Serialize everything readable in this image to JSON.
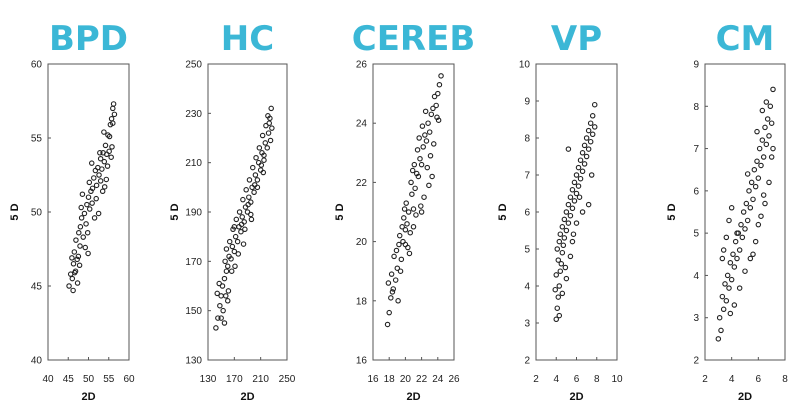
{
  "colors": {
    "title": "#3bb7d6",
    "point": "#222222",
    "frame": "#555555"
  },
  "chart_data": [
    {
      "type": "scatter",
      "title": "BPD",
      "xlabel": "2D",
      "ylabel": "5 D",
      "xlim": [
        40,
        60
      ],
      "ylim": [
        40,
        60
      ],
      "xticks": [
        "40",
        "45",
        "50",
        "55",
        "60"
      ],
      "yticks": [
        "40",
        "45",
        "50",
        "55",
        "60"
      ],
      "points": [
        [
          45.2,
          45.0
        ],
        [
          45.6,
          45.8
        ],
        [
          46.0,
          45.5
        ],
        [
          46.3,
          46.5
        ],
        [
          46.8,
          46.0
        ],
        [
          47.2,
          46.8
        ],
        [
          45.9,
          46.9
        ],
        [
          46.5,
          47.3
        ],
        [
          47.5,
          47.0
        ],
        [
          47.8,
          46.4
        ],
        [
          46.9,
          48.1
        ],
        [
          47.6,
          48.6
        ],
        [
          48.0,
          49.0
        ],
        [
          48.3,
          49.6
        ],
        [
          48.7,
          48.3
        ],
        [
          49.0,
          49.9
        ],
        [
          48.2,
          50.3
        ],
        [
          49.4,
          49.2
        ],
        [
          49.6,
          50.5
        ],
        [
          50.0,
          51.0
        ],
        [
          49.8,
          48.6
        ],
        [
          50.3,
          50.2
        ],
        [
          50.6,
          51.4
        ],
        [
          50.2,
          52.0
        ],
        [
          51.0,
          51.6
        ],
        [
          51.3,
          52.3
        ],
        [
          50.9,
          50.6
        ],
        [
          51.7,
          52.8
        ],
        [
          52.0,
          51.8
        ],
        [
          52.3,
          53.0
        ],
        [
          51.5,
          49.6
        ],
        [
          52.6,
          52.5
        ],
        [
          53.0,
          53.6
        ],
        [
          53.3,
          52.9
        ],
        [
          53.6,
          54.0
        ],
        [
          53.9,
          53.4
        ],
        [
          54.2,
          54.5
        ],
        [
          54.5,
          53.9
        ],
        [
          54.8,
          55.2
        ],
        [
          55.1,
          54.1
        ],
        [
          55.4,
          55.9
        ],
        [
          55.7,
          56.3
        ],
        [
          56.0,
          57.0
        ],
        [
          56.2,
          57.3
        ],
        [
          55.6,
          53.7
        ],
        [
          54.0,
          51.7
        ],
        [
          53.0,
          52.1
        ],
        [
          52.5,
          49.9
        ],
        [
          56.4,
          56.6
        ],
        [
          55.8,
          54.4
        ],
        [
          54.7,
          53.1
        ],
        [
          53.8,
          55.4
        ],
        [
          52.8,
          54.0
        ],
        [
          50.8,
          53.3
        ],
        [
          49.2,
          47.6
        ],
        [
          47.3,
          45.2
        ],
        [
          46.2,
          44.7
        ],
        [
          48.5,
          51.2
        ],
        [
          51.9,
          50.9
        ],
        [
          56.0,
          56.0
        ],
        [
          55.2,
          55.1
        ],
        [
          54.4,
          52.2
        ],
        [
          53.5,
          51.4
        ],
        [
          49.9,
          47.2
        ],
        [
          47.9,
          47.7
        ],
        [
          46.6,
          45.9
        ]
      ]
    },
    {
      "type": "scatter",
      "title": "HC",
      "xlabel": "2D",
      "ylabel": "5 D",
      "xlim": [
        130,
        250
      ],
      "ylim": [
        130,
        250
      ],
      "xticks": [
        "130",
        "170",
        "210",
        "250"
      ],
      "yticks": [
        "130",
        "150",
        "170",
        "190",
        "210",
        "230",
        "250"
      ],
      "points": [
        [
          142,
          143
        ],
        [
          145,
          147
        ],
        [
          148,
          152
        ],
        [
          144,
          157
        ],
        [
          150,
          156
        ],
        [
          152,
          160
        ],
        [
          147,
          161
        ],
        [
          155,
          163
        ],
        [
          153,
          150
        ],
        [
          158,
          166
        ],
        [
          156,
          170
        ],
        [
          160,
          168
        ],
        [
          162,
          172
        ],
        [
          158,
          175
        ],
        [
          165,
          171
        ],
        [
          167,
          176
        ],
        [
          163,
          178
        ],
        [
          170,
          174
        ],
        [
          172,
          180
        ],
        [
          168,
          183
        ],
        [
          175,
          178
        ],
        [
          177,
          184
        ],
        [
          173,
          187
        ],
        [
          180,
          182
        ],
        [
          182,
          188
        ],
        [
          178,
          190
        ],
        [
          185,
          186
        ],
        [
          187,
          192
        ],
        [
          183,
          195
        ],
        [
          190,
          190
        ],
        [
          192,
          196
        ],
        [
          188,
          199
        ],
        [
          195,
          194
        ],
        [
          197,
          200
        ],
        [
          193,
          203
        ],
        [
          200,
          198
        ],
        [
          202,
          205
        ],
        [
          198,
          208
        ],
        [
          205,
          203
        ],
        [
          207,
          210
        ],
        [
          203,
          212
        ],
        [
          210,
          207
        ],
        [
          212,
          214
        ],
        [
          208,
          216
        ],
        [
          215,
          211
        ],
        [
          217,
          218
        ],
        [
          213,
          221
        ],
        [
          220,
          216
        ],
        [
          222,
          222
        ],
        [
          218,
          225
        ],
        [
          224,
          228
        ],
        [
          226,
          232
        ],
        [
          221,
          229
        ],
        [
          225,
          219
        ],
        [
          215,
          213
        ],
        [
          205,
          200
        ],
        [
          195,
          189
        ],
        [
          186,
          183
        ],
        [
          176,
          173
        ],
        [
          166,
          166
        ],
        [
          157,
          156
        ],
        [
          150,
          147
        ],
        [
          161,
          158
        ],
        [
          171,
          168
        ],
        [
          181,
          185
        ],
        [
          191,
          193
        ],
        [
          201,
          201
        ],
        [
          211,
          209
        ],
        [
          223,
          226
        ],
        [
          227,
          224
        ],
        [
          160,
          154
        ],
        [
          170,
          184
        ],
        [
          184,
          177
        ],
        [
          196,
          187
        ],
        [
          214,
          206
        ],
        [
          155,
          145
        ]
      ]
    },
    {
      "type": "scatter",
      "title": "CEREB",
      "xlabel": "2D",
      "ylabel": "5 D",
      "xlim": [
        16,
        26
      ],
      "ylim": [
        16,
        26
      ],
      "xticks": [
        "16",
        "18",
        "20",
        "22",
        "24",
        "26"
      ],
      "yticks": [
        "16",
        "18",
        "20",
        "22",
        "24",
        "26"
      ],
      "points": [
        [
          17.8,
          17.2
        ],
        [
          18.0,
          17.6
        ],
        [
          18.2,
          18.1
        ],
        [
          18.5,
          18.4
        ],
        [
          18.3,
          18.9
        ],
        [
          18.8,
          18.7
        ],
        [
          19.0,
          19.1
        ],
        [
          18.6,
          19.5
        ],
        [
          19.2,
          19.9
        ],
        [
          19.5,
          19.4
        ],
        [
          19.3,
          20.2
        ],
        [
          19.7,
          20.0
        ],
        [
          20.0,
          20.4
        ],
        [
          19.8,
          20.8
        ],
        [
          20.2,
          20.6
        ],
        [
          20.4,
          21.0
        ],
        [
          20.1,
          21.3
        ],
        [
          20.6,
          20.3
        ],
        [
          20.8,
          21.6
        ],
        [
          21.0,
          21.1
        ],
        [
          20.7,
          22.0
        ],
        [
          21.2,
          21.8
        ],
        [
          21.4,
          22.3
        ],
        [
          21.1,
          22.6
        ],
        [
          21.6,
          22.2
        ],
        [
          21.8,
          22.8
        ],
        [
          21.5,
          23.1
        ],
        [
          22.0,
          22.6
        ],
        [
          22.2,
          23.2
        ],
        [
          22.4,
          23.6
        ],
        [
          22.1,
          23.9
        ],
        [
          22.6,
          23.4
        ],
        [
          22.8,
          24.0
        ],
        [
          23.0,
          23.7
        ],
        [
          23.2,
          24.3
        ],
        [
          23.4,
          24.5
        ],
        [
          23.6,
          24.9
        ],
        [
          23.8,
          24.6
        ],
        [
          24.0,
          25.0
        ],
        [
          24.2,
          25.3
        ],
        [
          24.4,
          25.6
        ],
        [
          23.9,
          24.2
        ],
        [
          23.1,
          22.9
        ],
        [
          22.3,
          21.5
        ],
        [
          21.3,
          20.9
        ],
        [
          20.3,
          19.8
        ],
        [
          19.4,
          19.0
        ],
        [
          18.4,
          18.3
        ],
        [
          17.9,
          18.6
        ],
        [
          19.1,
          18.0
        ],
        [
          20.5,
          19.6
        ],
        [
          21.9,
          21.2
        ],
        [
          22.7,
          22.5
        ],
        [
          23.5,
          23.3
        ],
        [
          24.1,
          24.1
        ],
        [
          22.5,
          24.4
        ],
        [
          21.7,
          23.5
        ],
        [
          20.9,
          22.4
        ],
        [
          19.9,
          21.1
        ],
        [
          19.6,
          20.5
        ],
        [
          18.9,
          19.7
        ],
        [
          22.9,
          21.9
        ],
        [
          20.0,
          19.9
        ],
        [
          21.0,
          20.5
        ],
        [
          22.0,
          21.0
        ],
        [
          23.3,
          22.2
        ]
      ]
    },
    {
      "type": "scatter",
      "title": "VP",
      "xlabel": "2D",
      "ylabel": "5 D",
      "xlim": [
        2,
        10
      ],
      "ylim": [
        2,
        10
      ],
      "xticks": [
        "2",
        "4",
        "6",
        "8",
        "10"
      ],
      "yticks": [
        "2",
        "3",
        "4",
        "5",
        "6",
        "7",
        "8",
        "9",
        "10"
      ],
      "points": [
        [
          4.0,
          3.1
        ],
        [
          4.1,
          3.4
        ],
        [
          4.2,
          3.7
        ],
        [
          3.9,
          3.9
        ],
        [
          4.3,
          4.0
        ],
        [
          4.0,
          4.3
        ],
        [
          4.4,
          4.4
        ],
        [
          4.2,
          4.7
        ],
        [
          4.5,
          4.6
        ],
        [
          4.1,
          5.0
        ],
        [
          4.6,
          4.9
        ],
        [
          4.3,
          5.2
        ],
        [
          4.7,
          5.1
        ],
        [
          4.4,
          5.4
        ],
        [
          4.8,
          5.3
        ],
        [
          4.6,
          5.6
        ],
        [
          5.0,
          5.5
        ],
        [
          4.8,
          5.8
        ],
        [
          5.2,
          5.7
        ],
        [
          5.0,
          6.0
        ],
        [
          5.4,
          5.9
        ],
        [
          5.2,
          6.2
        ],
        [
          5.6,
          6.1
        ],
        [
          5.4,
          6.4
        ],
        [
          5.8,
          6.3
        ],
        [
          5.6,
          6.6
        ],
        [
          6.0,
          6.5
        ],
        [
          5.8,
          6.8
        ],
        [
          6.2,
          6.7
        ],
        [
          6.0,
          7.0
        ],
        [
          6.4,
          6.9
        ],
        [
          6.2,
          7.2
        ],
        [
          6.6,
          7.1
        ],
        [
          6.4,
          7.4
        ],
        [
          6.8,
          7.3
        ],
        [
          6.6,
          7.6
        ],
        [
          7.0,
          7.5
        ],
        [
          6.8,
          7.8
        ],
        [
          7.2,
          7.7
        ],
        [
          7.0,
          8.0
        ],
        [
          7.4,
          7.9
        ],
        [
          7.2,
          8.2
        ],
        [
          7.6,
          8.1
        ],
        [
          7.4,
          8.4
        ],
        [
          7.8,
          8.3
        ],
        [
          7.6,
          8.6
        ],
        [
          7.8,
          8.9
        ],
        [
          5.2,
          7.7
        ],
        [
          5.0,
          4.2
        ],
        [
          5.6,
          5.2
        ],
        [
          6.6,
          6.0
        ],
        [
          7.2,
          6.2
        ],
        [
          4.6,
          3.8
        ],
        [
          4.3,
          3.2
        ],
        [
          5.4,
          4.8
        ],
        [
          6.0,
          5.7
        ],
        [
          7.5,
          7.0
        ],
        [
          6.3,
          6.4
        ],
        [
          4.9,
          4.5
        ],
        [
          5.7,
          5.4
        ]
      ]
    },
    {
      "type": "scatter",
      "title": "CM",
      "xlabel": "2D",
      "ylabel": "5 D",
      "xlim": [
        2,
        8
      ],
      "ylim": [
        2,
        9
      ],
      "xticks": [
        "2",
        "4",
        "6",
        "8"
      ],
      "yticks": [
        "2",
        "3",
        "4",
        "5",
        "6",
        "7",
        "8",
        "9"
      ],
      "points": [
        [
          3.0,
          2.5
        ],
        [
          3.2,
          2.7
        ],
        [
          3.1,
          3.0
        ],
        [
          3.4,
          3.2
        ],
        [
          3.3,
          3.5
        ],
        [
          3.6,
          3.4
        ],
        [
          3.5,
          3.8
        ],
        [
          3.8,
          3.7
        ],
        [
          3.7,
          4.0
        ],
        [
          4.0,
          3.9
        ],
        [
          3.9,
          4.3
        ],
        [
          4.2,
          4.2
        ],
        [
          4.1,
          4.5
        ],
        [
          4.4,
          4.4
        ],
        [
          4.3,
          4.8
        ],
        [
          4.6,
          4.6
        ],
        [
          4.5,
          5.0
        ],
        [
          4.8,
          4.9
        ],
        [
          4.7,
          5.2
        ],
        [
          5.0,
          5.1
        ],
        [
          4.9,
          5.5
        ],
        [
          5.2,
          5.3
        ],
        [
          5.1,
          5.7
        ],
        [
          5.4,
          5.6
        ],
        [
          5.3,
          6.0
        ],
        [
          5.6,
          5.8
        ],
        [
          5.5,
          6.2
        ],
        [
          5.8,
          6.1
        ],
        [
          5.7,
          6.5
        ],
        [
          6.0,
          6.3
        ],
        [
          5.9,
          6.7
        ],
        [
          6.2,
          6.6
        ],
        [
          6.1,
          7.0
        ],
        [
          6.4,
          6.8
        ],
        [
          6.3,
          7.2
        ],
        [
          6.6,
          7.1
        ],
        [
          6.5,
          7.5
        ],
        [
          6.8,
          7.3
        ],
        [
          6.7,
          7.7
        ],
        [
          7.0,
          7.6
        ],
        [
          6.9,
          8.0
        ],
        [
          6.6,
          8.1
        ],
        [
          7.1,
          8.4
        ],
        [
          3.4,
          4.6
        ],
        [
          3.6,
          4.9
        ],
        [
          3.8,
          5.3
        ],
        [
          4.0,
          5.6
        ],
        [
          5.0,
          4.1
        ],
        [
          5.4,
          4.4
        ],
        [
          5.8,
          4.8
        ],
        [
          6.2,
          5.4
        ],
        [
          6.5,
          5.7
        ],
        [
          6.8,
          6.2
        ],
        [
          7.0,
          6.8
        ],
        [
          4.6,
          3.7
        ],
        [
          4.2,
          3.3
        ],
        [
          3.9,
          3.1
        ],
        [
          5.6,
          4.5
        ],
        [
          6.0,
          5.2
        ],
        [
          6.4,
          5.9
        ],
        [
          7.1,
          7.0
        ],
        [
          3.3,
          4.4
        ],
        [
          4.4,
          5.0
        ],
        [
          5.2,
          6.4
        ],
        [
          5.9,
          7.4
        ],
        [
          6.3,
          7.9
        ]
      ]
    }
  ]
}
